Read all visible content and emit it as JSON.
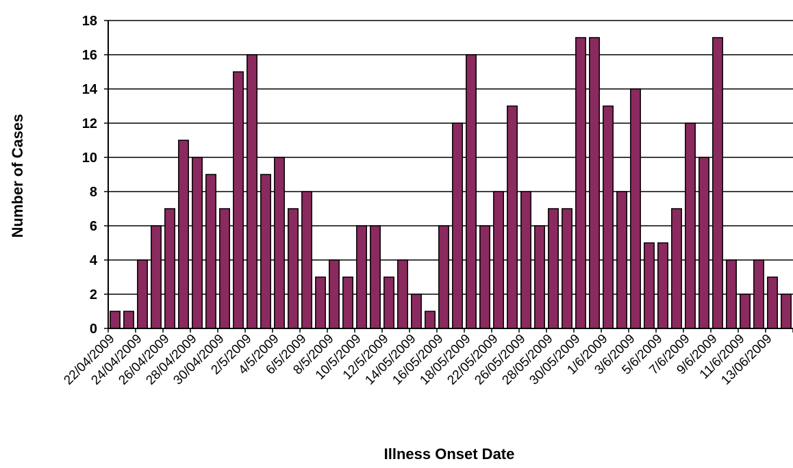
{
  "chart_data": {
    "type": "bar",
    "title": "",
    "xlabel": "Illness Onset Date",
    "ylabel": "Number of Cases",
    "ylim": [
      0,
      18
    ],
    "yticks": [
      0,
      2,
      4,
      6,
      8,
      10,
      12,
      14,
      16,
      18
    ],
    "grid": true,
    "bar_color": "#8B2A5E",
    "xtick_labels": [
      "22/04/2009",
      "24/04/2009",
      "26/04/2009",
      "28/04/2009",
      "30/04/2009",
      "2/5/2009",
      "4/5/2009",
      "6/5/2009",
      "8/5/2009",
      "10/5/2009",
      "12/5/2009",
      "14/05/2009",
      "16/05/2009",
      "18/05/2009",
      "22/05/2009",
      "26/05/2009",
      "28/05/2009",
      "30/05/2009",
      "1/6/2009",
      "3/6/2009",
      "5/6/2009",
      "7/6/2009",
      "9/6/2009",
      "11/6/2009",
      "13/06/2009"
    ],
    "values": [
      1,
      1,
      4,
      6,
      7,
      11,
      10,
      9,
      7,
      15,
      16,
      9,
      10,
      7,
      8,
      3,
      4,
      3,
      6,
      6,
      3,
      4,
      2,
      1,
      6,
      12,
      16,
      6,
      8,
      13,
      8,
      6,
      7,
      7,
      17,
      17,
      13,
      8,
      14,
      5,
      5,
      7,
      12,
      10,
      17,
      4,
      2,
      4,
      3,
      2
    ]
  }
}
